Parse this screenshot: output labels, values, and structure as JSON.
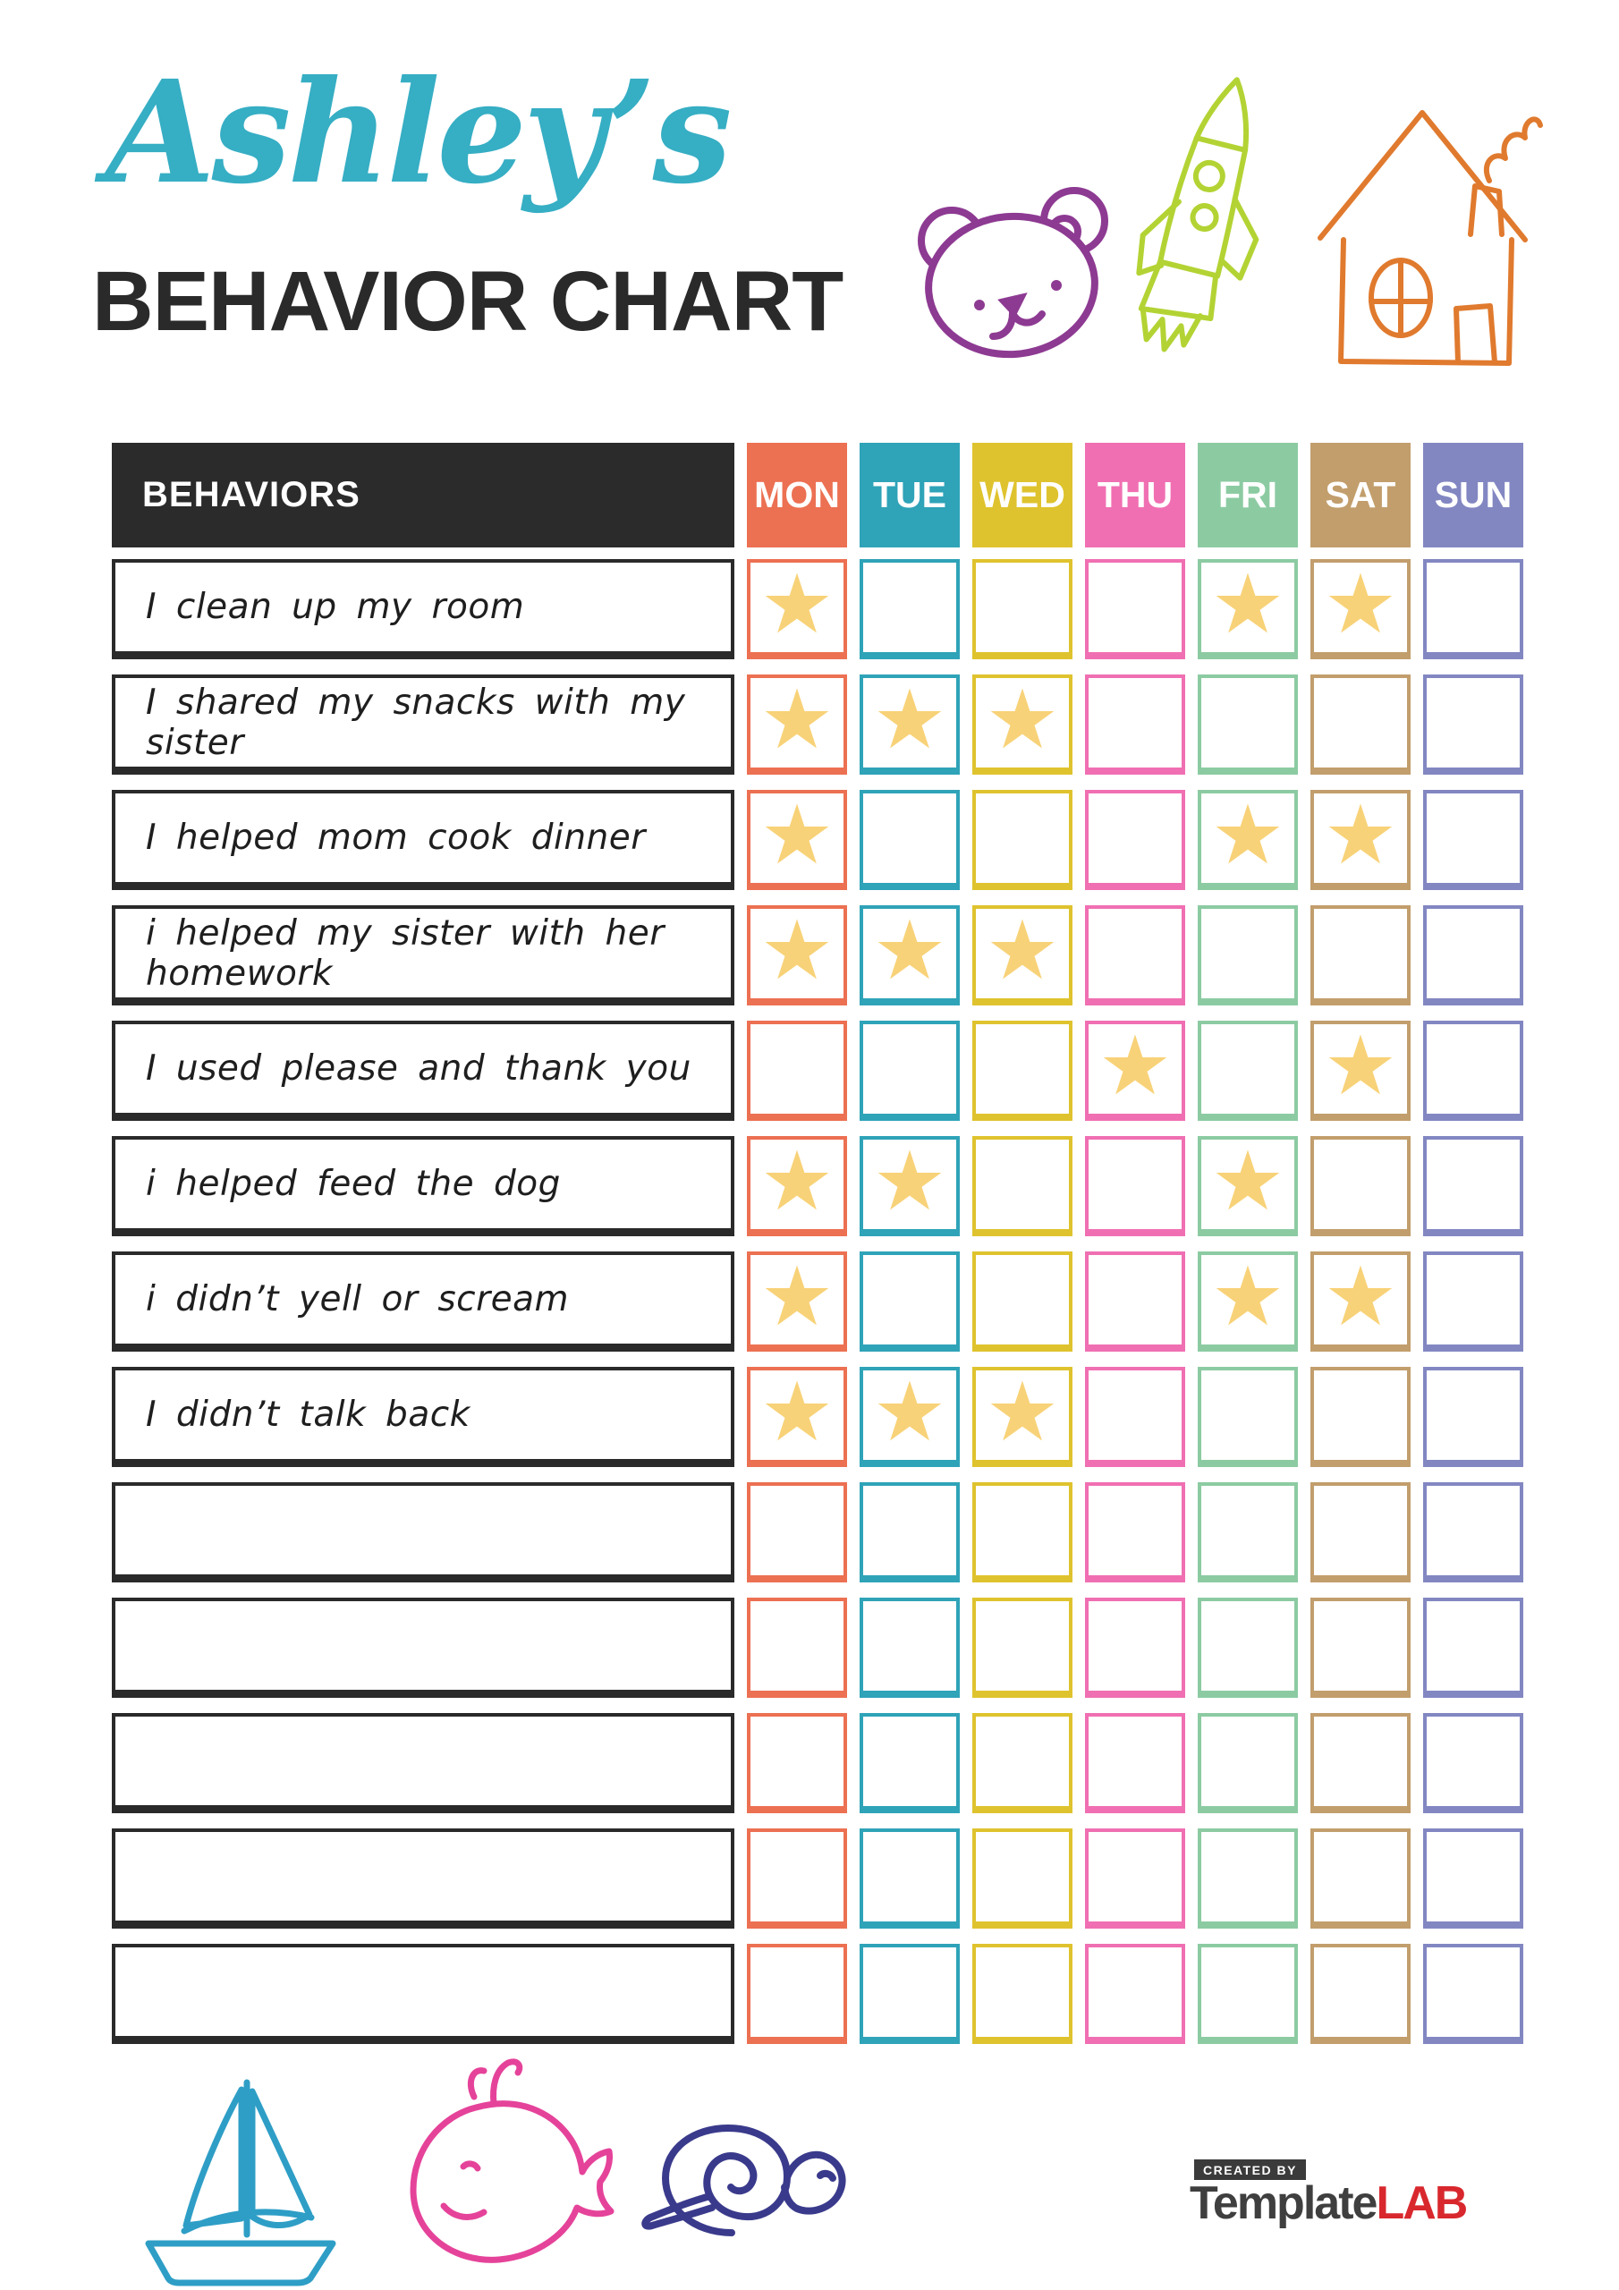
{
  "header": {
    "name": "Ashley’s",
    "title": "BEHAVIOR CHART"
  },
  "colors": {
    "name_accent": "#36AEC4",
    "ink": "#2A2A2A",
    "star": "#F8D278",
    "bear": "#8D3A92",
    "rocket": "#B3D334",
    "house": "#E07A2E",
    "sailboat": "#2E9EC6",
    "whale": "#E5439A",
    "snail": "#3A3A8C"
  },
  "icons": {
    "star_glyph": "★"
  },
  "table": {
    "behaviors_header": "BEHAVIORS",
    "days": [
      {
        "label": "MON",
        "color": "#EC7052"
      },
      {
        "label": "TUE",
        "color": "#2FA3B8"
      },
      {
        "label": "WED",
        "color": "#DFC32E"
      },
      {
        "label": "THU",
        "color": "#F06FB2"
      },
      {
        "label": "FRI",
        "color": "#8CCBA2"
      },
      {
        "label": "SAT",
        "color": "#C29E6C"
      },
      {
        "label": "SUN",
        "color": "#8287C2"
      }
    ],
    "rows": [
      {
        "behavior": "I clean up my room",
        "stars": [
          "MON",
          "FRI",
          "SAT"
        ]
      },
      {
        "behavior": "I shared my snacks with my sister",
        "stars": [
          "MON",
          "TUE",
          "WED"
        ]
      },
      {
        "behavior": "I helped mom cook dinner",
        "stars": [
          "MON",
          "FRI",
          "SAT"
        ]
      },
      {
        "behavior": "i helped my sister with her homework",
        "stars": [
          "MON",
          "TUE",
          "WED"
        ]
      },
      {
        "behavior": "I used please and thank you",
        "stars": [
          "THU",
          "SAT"
        ]
      },
      {
        "behavior": "i helped feed the dog",
        "stars": [
          "MON",
          "TUE",
          "FRI"
        ]
      },
      {
        "behavior": "i didn’t yell or scream",
        "stars": [
          "MON",
          "FRI",
          "SAT"
        ]
      },
      {
        "behavior": "I didn’t talk back",
        "stars": [
          "MON",
          "TUE",
          "WED"
        ]
      },
      {
        "behavior": "",
        "stars": []
      },
      {
        "behavior": "",
        "stars": []
      },
      {
        "behavior": "",
        "stars": []
      },
      {
        "behavior": "",
        "stars": []
      },
      {
        "behavior": "",
        "stars": []
      }
    ]
  },
  "footer": {
    "logo": {
      "created_by": "CREATED BY",
      "brand_primary": "Template",
      "brand_accent": "LAB"
    }
  }
}
